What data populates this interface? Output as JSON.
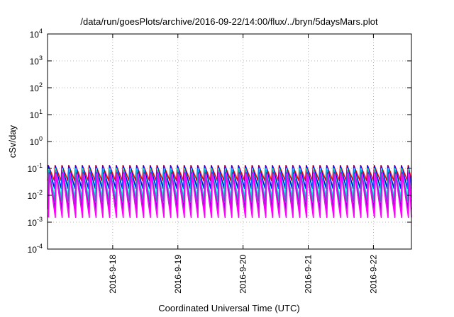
{
  "chart_data": {
    "type": "line",
    "title": "/data/run/goesPlots/archive/2016-09-22/14:00/flux/../bryn/5daysMars.plot",
    "xlabel": "Coordinated Universal Time (UTC)",
    "ylabel": "cSv/day",
    "yscale": "log",
    "ylim": [
      0.0001,
      10000
    ],
    "y_ticks": [
      {
        "base": "10",
        "exp": "4",
        "value": 10000
      },
      {
        "base": "10",
        "exp": "3",
        "value": 1000
      },
      {
        "base": "10",
        "exp": "2",
        "value": 100
      },
      {
        "base": "10",
        "exp": "1",
        "value": 10
      },
      {
        "base": "10",
        "exp": "0",
        "value": 1
      },
      {
        "base": "10",
        "exp": "-1",
        "value": 0.1
      },
      {
        "base": "10",
        "exp": "-2",
        "value": 0.01
      },
      {
        "base": "10",
        "exp": "-3",
        "value": 0.001
      },
      {
        "base": "10",
        "exp": "-4",
        "value": 0.0001
      }
    ],
    "xlim": [
      "2016-09-17 00:00",
      "2016-09-22 14:00"
    ],
    "x_ticks": [
      "2016-9-18",
      "2016-9-19",
      "2016-9-20",
      "2016-9-21",
      "2016-9-22"
    ],
    "x_tick_dates": [
      "2016-09-18",
      "2016-09-19",
      "2016-09-20",
      "2016-09-21",
      "2016-09-22"
    ],
    "grid": true,
    "legend": "none",
    "sawtooth_period_hours": 2.5,
    "series": [
      {
        "color": "#ff0000",
        "peak": 0.13,
        "trough": 0.035
      },
      {
        "color": "#0000ff",
        "peak": 0.12,
        "trough": 0.018
      },
      {
        "color": "#00ffff",
        "peak": 0.1,
        "trough": 0.008
      },
      {
        "color": "#20b2aa",
        "peak": 0.085,
        "trough": 0.006
      },
      {
        "color": "#9400d3",
        "peak": 0.07,
        "trough": 0.003
      },
      {
        "color": "#ff00ff",
        "peak": 0.06,
        "trough": 0.0015
      }
    ]
  }
}
